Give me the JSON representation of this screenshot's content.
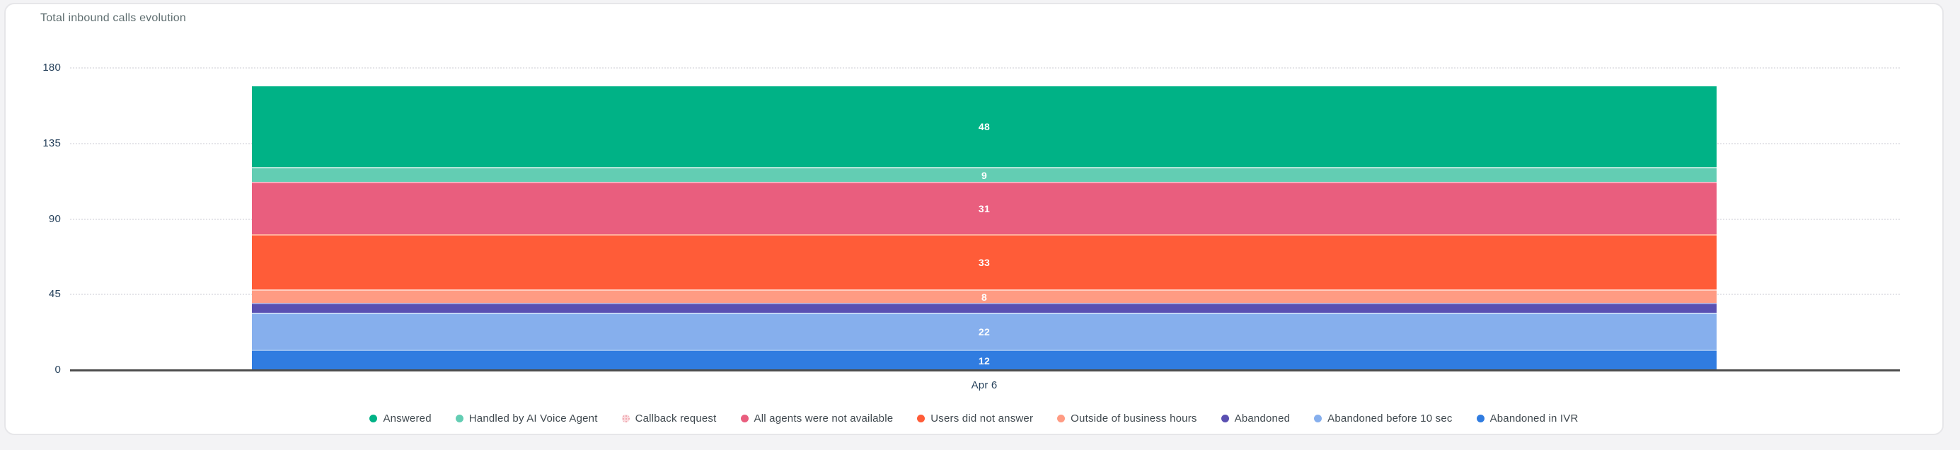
{
  "chart_data": {
    "type": "bar",
    "stacked": true,
    "title": "Total inbound calls evolution",
    "categories": [
      "Apr 6"
    ],
    "series": [
      {
        "name": "Answered",
        "color": "#00B286",
        "pattern": false,
        "values": [
          48
        ]
      },
      {
        "name": "Handled by AI Voice Agent",
        "color": "#63CDB3",
        "pattern": false,
        "values": [
          9
        ]
      },
      {
        "name": "Callback request",
        "color": "#F6C2C9",
        "pattern": true,
        "values": [
          0
        ]
      },
      {
        "name": "All agents were not available",
        "color": "#E95E7E",
        "pattern": false,
        "values": [
          31
        ]
      },
      {
        "name": "Users did not answer",
        "color": "#FF5C38",
        "pattern": false,
        "values": [
          33
        ]
      },
      {
        "name": "Outside of business hours",
        "color": "#FF9B83",
        "pattern": false,
        "values": [
          8
        ]
      },
      {
        "name": "Abandoned",
        "color": "#5A50B2",
        "pattern": false,
        "values": [
          6
        ]
      },
      {
        "name": "Abandoned before 10 sec",
        "color": "#86AFED",
        "pattern": false,
        "values": [
          22
        ]
      },
      {
        "name": "Abandoned in IVR",
        "color": "#307CE0",
        "pattern": false,
        "values": [
          12
        ]
      }
    ],
    "visible_value_labels": [
      "48",
      "9",
      "31",
      "33",
      "8",
      "22",
      "12"
    ],
    "y_ticks": [
      0,
      45,
      90,
      135,
      180
    ],
    "ylim": [
      0,
      180
    ],
    "xlabel": "",
    "ylabel": "",
    "grid": "dotted-horizontal",
    "legend_position": "bottom",
    "value_label_color": "#FFFFFF",
    "axis_line_color": "#4D4D4D"
  }
}
